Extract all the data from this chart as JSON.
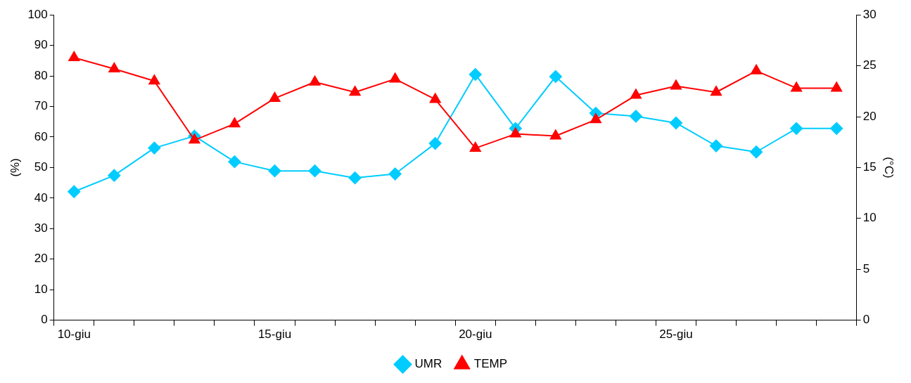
{
  "chart_data": {
    "type": "line",
    "ylabel": "(%)",
    "y2label": "(°C)",
    "categories": [
      "10-giu",
      null,
      null,
      null,
      null,
      "15-giu",
      null,
      null,
      null,
      null,
      "20-giu",
      null,
      null,
      null,
      null,
      "25-giu",
      null,
      null,
      null,
      null
    ],
    "series": [
      {
        "name": "UMR",
        "color": "#00ccff",
        "marker": "diamond",
        "values": [
          42.1,
          47.4,
          56.4,
          60.3,
          51.9,
          48.9,
          48.9,
          46.6,
          47.9,
          57.9,
          80.5,
          62.8,
          79.8,
          67.8,
          66.8,
          64.6,
          57.1,
          55.1,
          62.8,
          62.8
        ]
      },
      {
        "name": "TEMP",
        "color": "#ff0000",
        "marker": "triangle",
        "axis": "y2",
        "values": [
          25.8,
          24.7,
          23.5,
          17.7,
          19.3,
          21.8,
          23.4,
          22.4,
          23.7,
          21.7,
          16.9,
          18.3,
          18.1,
          19.7,
          22.1,
          23.0,
          22.4,
          24.5,
          22.8,
          22.8
        ]
      }
    ],
    "ylim": [
      0,
      100
    ],
    "yticks": [
      0,
      10,
      20,
      30,
      40,
      50,
      60,
      70,
      80,
      90,
      100
    ],
    "y2lim": [
      0,
      30
    ],
    "y2ticks": [
      0,
      5,
      10,
      15,
      20,
      25,
      30
    ],
    "grid": false,
    "legend": "bottom",
    "line_style": "solid"
  }
}
